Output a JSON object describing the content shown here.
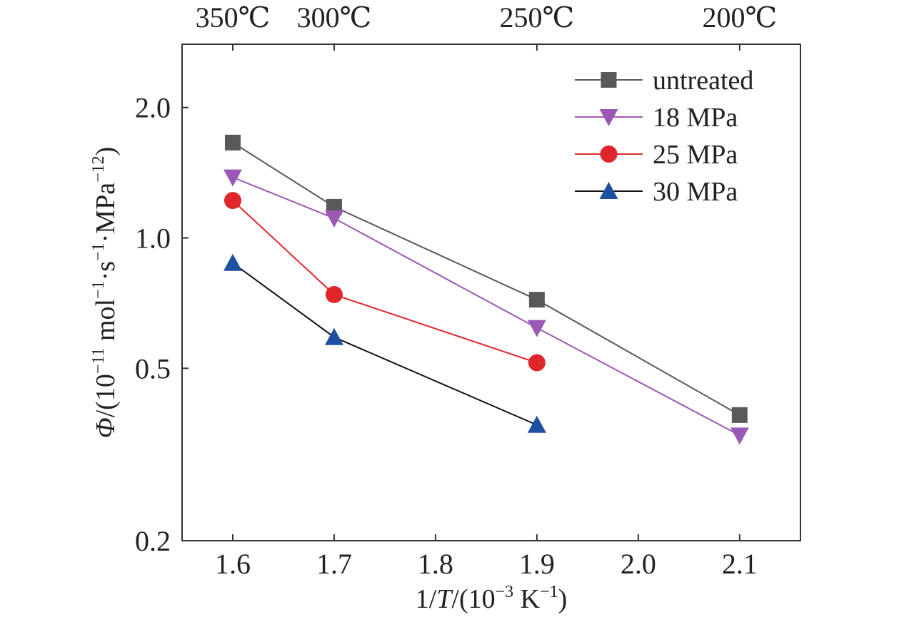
{
  "chart_data": {
    "type": "line",
    "xlabel_parts": {
      "prefix": "1/",
      "var": "T",
      "mid": "/(10",
      "exp": "−3",
      "mid2": " K",
      "exp2": "−1",
      "suffix": ")"
    },
    "ylabel_parts": {
      "var": "Φ",
      "a": "/(10",
      "e1": "−11",
      "b": " mol",
      "e2": "−1",
      "c": "·s",
      "e3": "−1",
      "d": "·MPa",
      "e4": "−12",
      "f": ")"
    },
    "y_scale": "log",
    "xlim": [
      1.55,
      2.16
    ],
    "ylim": [
      0.2,
      2.8
    ],
    "x_ticks": [
      1.6,
      1.7,
      1.8,
      1.9,
      2.0,
      2.1
    ],
    "x_tick_labels": [
      "1.6",
      "1.7",
      "1.8",
      "1.9",
      "2.0",
      "2.1"
    ],
    "y_ticks": [
      0.2,
      0.5,
      1.0,
      2.0
    ],
    "y_tick_labels": [
      "0.2",
      "0.5",
      "1.0",
      "2.0"
    ],
    "top_ticks": [
      {
        "label": "350℃",
        "x": 1.6
      },
      {
        "label": "300℃",
        "x": 1.7
      },
      {
        "label": "250℃",
        "x": 1.9
      },
      {
        "label": "200℃",
        "x": 2.1
      }
    ],
    "grid": false,
    "legend_position": "top-right",
    "series": [
      {
        "name": "untreated",
        "color": "#595959",
        "line_color": "#595959",
        "marker": "square",
        "x": [
          1.6,
          1.7,
          1.9,
          2.1
        ],
        "y": [
          1.66,
          1.18,
          0.72,
          0.39
        ]
      },
      {
        "name": "18 MPa",
        "color": "#9b59b6",
        "line_color": "#9b59b6",
        "marker": "triangle-down",
        "x": [
          1.6,
          1.7,
          1.9,
          2.1
        ],
        "y": [
          1.38,
          1.11,
          0.62,
          0.35
        ]
      },
      {
        "name": "25 MPa",
        "color": "#e0262b",
        "line_color": "#e0262b",
        "marker": "circle",
        "x": [
          1.6,
          1.7,
          1.9
        ],
        "y": [
          1.22,
          0.74,
          0.515
        ]
      },
      {
        "name": "30 MPa",
        "color": "#1f4fa0",
        "line_color": "#111111",
        "marker": "triangle-up",
        "x": [
          1.6,
          1.7,
          1.9
        ],
        "y": [
          0.875,
          0.59,
          0.37
        ]
      }
    ]
  }
}
